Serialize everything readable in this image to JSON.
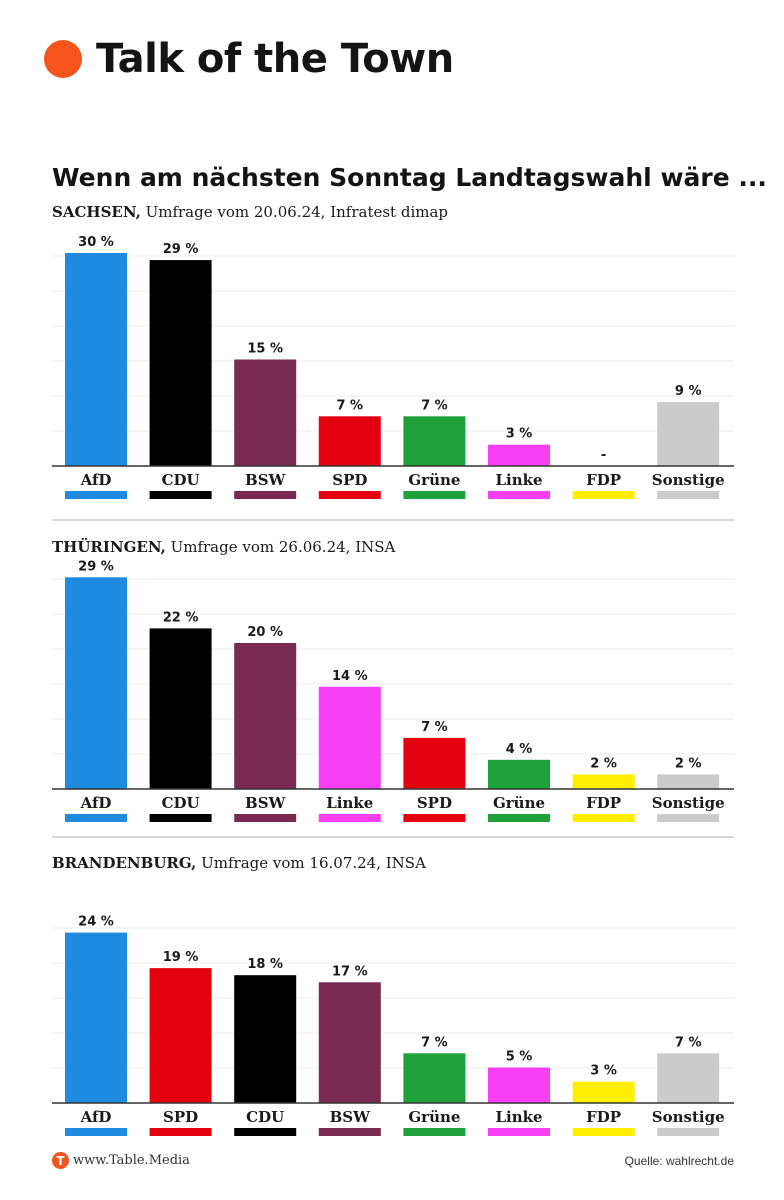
{
  "header": {
    "title": "Talk of the Town"
  },
  "headline": "Wenn am nächsten Sonntag Landtagswahl wäre ...",
  "footer": {
    "logo_letter": "T",
    "site": "www.Table.Media",
    "source": "Quelle: wahlrecht.de"
  },
  "chart_data": [
    {
      "type": "bar",
      "state": "SACHSEN,",
      "subtitle": " Umfrage vom 20.06.24, Infratest dimap",
      "categories": [
        "AfD",
        "CDU",
        "BSW",
        "SPD",
        "Grüne",
        "Linke",
        "FDP",
        "Sonstige"
      ],
      "values": [
        30,
        29,
        15,
        7,
        7,
        3,
        null,
        9
      ],
      "value_labels": [
        "30 %",
        "29 %",
        "15 %",
        "7 %",
        "7 %",
        "3 %",
        "-",
        "9 %"
      ],
      "colors": [
        "#1e8be0",
        "#000000",
        "#7a2950",
        "#e3000f",
        "#1fa13a",
        "#f73ff5",
        "#ffee00",
        "#cbcbcb"
      ]
    },
    {
      "type": "bar",
      "state": "THÜRINGEN,",
      "subtitle": " Umfrage vom 26.06.24, INSA",
      "categories": [
        "AfD",
        "CDU",
        "BSW",
        "Linke",
        "SPD",
        "Grüne",
        "FDP",
        "Sonstige"
      ],
      "values": [
        29,
        22,
        20,
        14,
        7,
        4,
        2,
        2
      ],
      "value_labels": [
        "29 %",
        "22 %",
        "20 %",
        "14 %",
        "7 %",
        "4 %",
        "2 %",
        "2 %"
      ],
      "colors": [
        "#1e8be0",
        "#000000",
        "#7a2950",
        "#f73ff5",
        "#e3000f",
        "#1fa13a",
        "#ffee00",
        "#cbcbcb"
      ]
    },
    {
      "type": "bar",
      "state": "BRANDENBURG,",
      "subtitle": " Umfrage vom 16.07.24, INSA",
      "categories": [
        "AfD",
        "SPD",
        "CDU",
        "BSW",
        "Grüne",
        "Linke",
        "FDP",
        "Sonstige"
      ],
      "values": [
        24,
        19,
        18,
        17,
        7,
        5,
        3,
        7
      ],
      "value_labels": [
        "24 %",
        "19 %",
        "18 %",
        "17 %",
        "7 %",
        "5 %",
        "3 %",
        "7 %"
      ],
      "colors": [
        "#1e8be0",
        "#e3000f",
        "#000000",
        "#7a2950",
        "#1fa13a",
        "#f73ff5",
        "#ffee00",
        "#cbcbcb"
      ]
    }
  ]
}
